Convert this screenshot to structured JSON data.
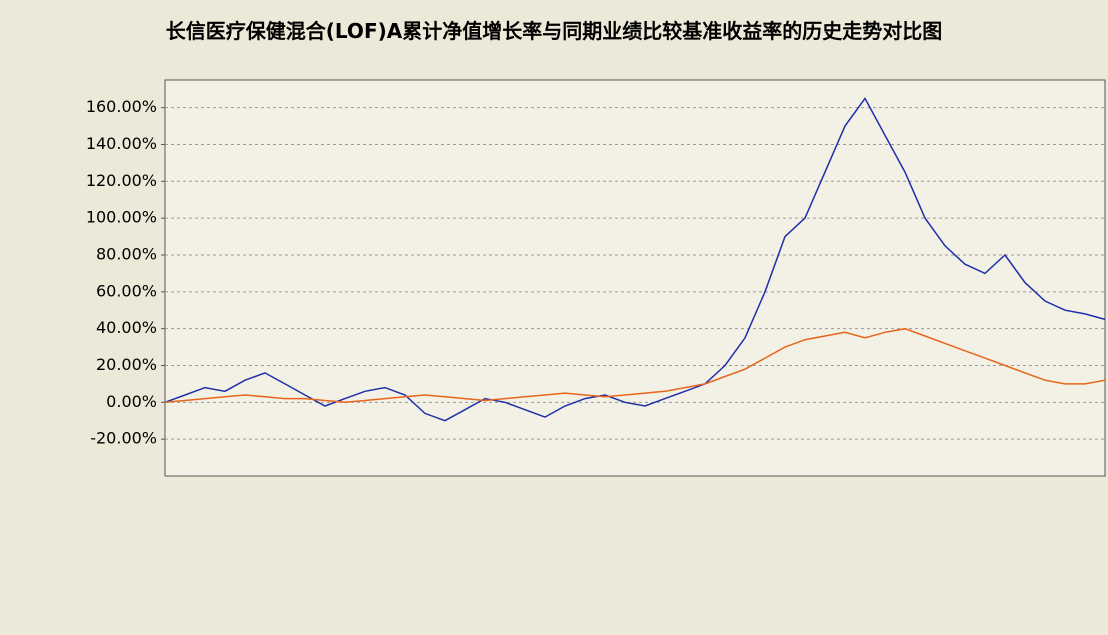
{
  "chart_data": {
    "type": "line",
    "title": "长信医疗保健混合(LOF)A累计净值增长率与同期业绩比较基准收益率的历史走势对比图",
    "series": [
      {
        "color": "#1f2fa8",
        "values": [
          0,
          4,
          8,
          6,
          12,
          16,
          10,
          4,
          -2,
          2,
          6,
          8,
          4,
          -6,
          -10,
          -4,
          2,
          0,
          -4,
          -8,
          -2,
          2,
          4,
          0,
          -2,
          2,
          6,
          10,
          20,
          35,
          60,
          90,
          100,
          125,
          150,
          165,
          145,
          125,
          100,
          85,
          75,
          70,
          80,
          65,
          55,
          50,
          48,
          45
        ]
      },
      {
        "color": "#e8641b",
        "values": [
          0,
          1,
          2,
          3,
          4,
          3,
          2,
          2,
          1,
          0,
          1,
          2,
          3,
          4,
          3,
          2,
          1,
          2,
          3,
          4,
          5,
          4,
          3,
          4,
          5,
          6,
          8,
          10,
          14,
          18,
          24,
          30,
          34,
          36,
          38,
          35,
          38,
          40,
          36,
          32,
          28,
          24,
          20,
          16,
          12,
          10,
          10,
          12
        ]
      }
    ],
    "ylim": [
      -40,
      175
    ],
    "yticks": [
      {
        "value": -20,
        "label": "-20.00%"
      },
      {
        "value": 0,
        "label": "0.00%"
      },
      {
        "value": 20,
        "label": "20.00%"
      },
      {
        "value": 40,
        "label": "40.00%"
      },
      {
        "value": 60,
        "label": "60.00%"
      },
      {
        "value": 80,
        "label": "80.00%"
      },
      {
        "value": 100,
        "label": "100.00%"
      },
      {
        "value": 120,
        "label": "120.00%"
      },
      {
        "value": 140,
        "label": "140.00%"
      },
      {
        "value": 160,
        "label": "160.00%"
      }
    ],
    "grid": true
  }
}
